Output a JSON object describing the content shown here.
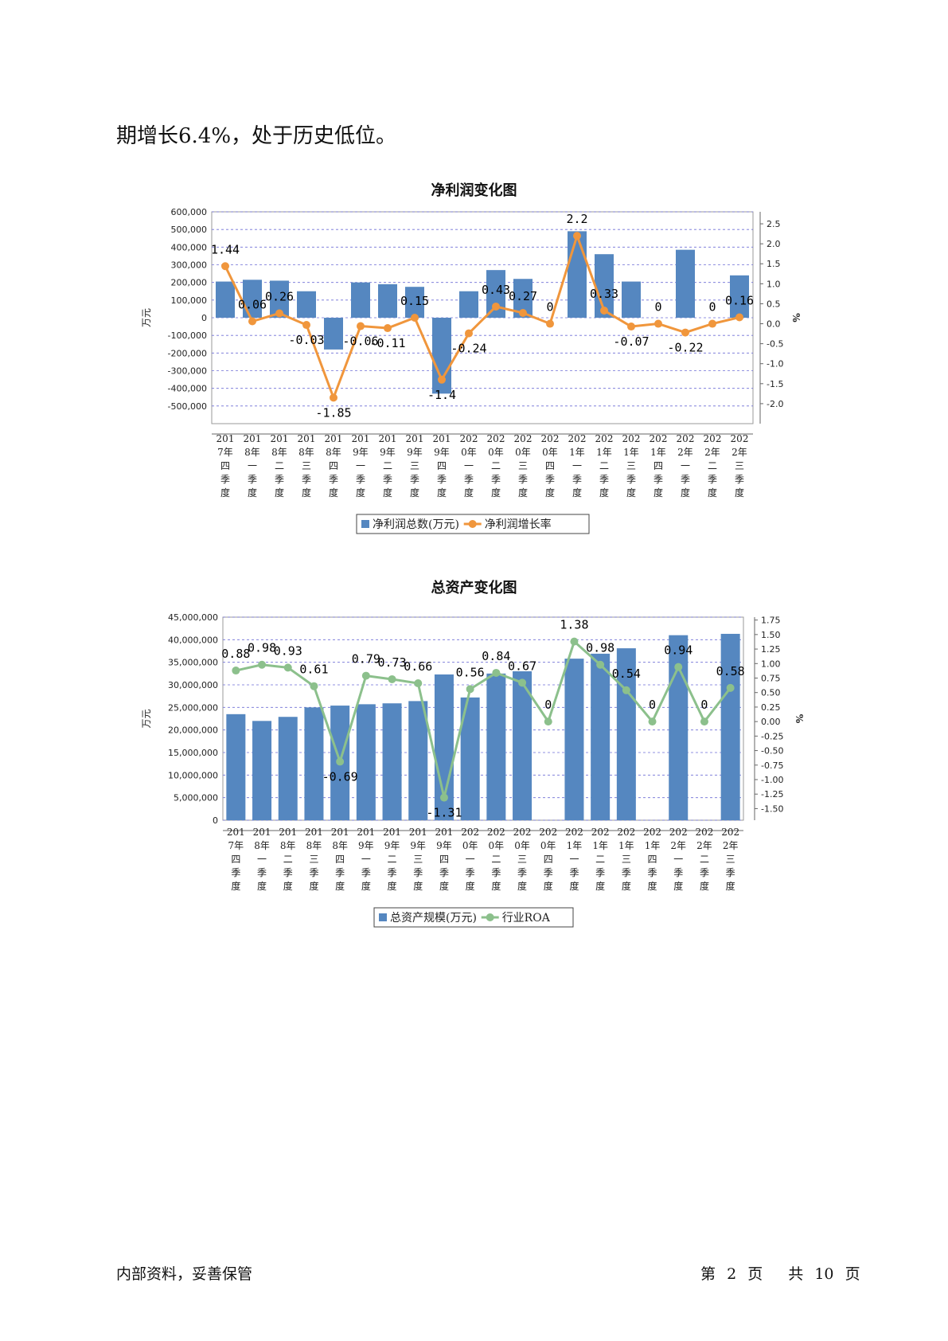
{
  "intro_text": "期增长6.4%，处于历史低位。",
  "footer": {
    "left": "内部资料，妥善保管",
    "page_prefix": "第",
    "page_num": "2",
    "page_word": "页",
    "total_prefix": "共",
    "total_num": "10",
    "total_word": "页"
  },
  "chart_data": [
    {
      "type": "bar+line",
      "title": "净利润变化图",
      "categories": [
        "2017年四季度",
        "2018年一季度",
        "2018年二季度",
        "2018年三季度",
        "2018年四季度",
        "2019年一季度",
        "2019年二季度",
        "2019年三季度",
        "2019年四季度",
        "2020年一季度",
        "2020年二季度",
        "2020年三季度",
        "2020年四季度",
        "2021年一季度",
        "2021年二季度",
        "2021年三季度",
        "2021年四季度",
        "2022年一季度",
        "2022年二季度",
        "2022年三季度"
      ],
      "series": [
        {
          "name": "净利润总数(万元)",
          "type": "bar",
          "axis": "left",
          "color": "#5587c0",
          "values": [
            205000,
            215000,
            210000,
            150000,
            -180000,
            200000,
            190000,
            175000,
            -430000,
            150000,
            270000,
            220000,
            null,
            490000,
            360000,
            205000,
            null,
            385000,
            null,
            240000
          ]
        },
        {
          "name": "净利润增长率",
          "type": "line",
          "axis": "right",
          "color": "#f0963c",
          "values": [
            1.44,
            0.06,
            0.26,
            -0.03,
            -1.85,
            -0.06,
            -0.11,
            0.15,
            -1.4,
            -0.24,
            0.43,
            0.27,
            0,
            2.2,
            0.33,
            -0.07,
            0,
            -0.22,
            0,
            0.16
          ],
          "labels": [
            "1.44",
            "0.06",
            "0.26",
            "-0.03",
            "-1.85",
            "-0.06",
            "-0.11",
            "0.15",
            "-1.4",
            "-0.24",
            "0.43",
            "0.27",
            "0",
            "2.2",
            "0.33",
            "-0.07",
            "0",
            "-0.22",
            "0",
            "0.16"
          ]
        }
      ],
      "left_axis": {
        "label": "万元",
        "min": -600000,
        "max": 600000,
        "ticks": [
          600000,
          500000,
          400000,
          300000,
          200000,
          100000,
          0,
          -100000,
          -200000,
          -300000,
          -400000,
          -500000
        ],
        "tick_labels": [
          "600,000",
          "500,000",
          "400,000",
          "300,000",
          "200,000",
          "100,000",
          "0",
          "-100,000",
          "-200,000",
          "-300,000",
          "-400,000",
          "-500,000"
        ]
      },
      "right_axis": {
        "label": "%",
        "min": -2.5,
        "max": 2.8,
        "ticks": [
          2.5,
          2.0,
          1.5,
          1.0,
          0.5,
          0.0,
          -0.5,
          -1.0,
          -1.5,
          -2.0
        ],
        "tick_labels": [
          "2.5",
          "2.0",
          "1.5",
          "1.0",
          "0.5",
          "0.0",
          "-0.5",
          "-1.0",
          "-1.5",
          "-2.0"
        ]
      },
      "grid": true,
      "legend": "bottom"
    },
    {
      "type": "bar+line",
      "title": "总资产变化图",
      "categories": [
        "2017年四季度",
        "2018年一季度",
        "2018年二季度",
        "2018年三季度",
        "2018年四季度",
        "2019年一季度",
        "2019年二季度",
        "2019年三季度",
        "2019年四季度",
        "2020年一季度",
        "2020年二季度",
        "2020年三季度",
        "2020年四季度",
        "2021年一季度",
        "2021年二季度",
        "2021年三季度",
        "2021年四季度",
        "2022年一季度",
        "2022年二季度",
        "2022年三季度"
      ],
      "series": [
        {
          "name": "总资产规模(万元)",
          "type": "bar",
          "axis": "left",
          "color": "#5587c0",
          "values": [
            23500000,
            22000000,
            22900000,
            25000000,
            25400000,
            25700000,
            25900000,
            26400000,
            32300000,
            27200000,
            32500000,
            33000000,
            null,
            35800000,
            36900000,
            38100000,
            null,
            41000000,
            null,
            41300000
          ]
        },
        {
          "name": "行业ROA",
          "type": "line",
          "axis": "right",
          "color": "#8cc08c",
          "values": [
            0.88,
            0.98,
            0.93,
            0.61,
            -0.69,
            0.79,
            0.73,
            0.66,
            -1.31,
            0.56,
            0.84,
            0.67,
            0,
            1.38,
            0.98,
            0.54,
            0,
            0.94,
            0,
            0.58
          ],
          "labels": [
            "0.88",
            "0.98",
            "0.93",
            "0.61",
            "-0.69",
            "0.79",
            "0.73",
            "0.66",
            "-1.31",
            "0.56",
            "0.84",
            "0.67",
            "0",
            "1.38",
            "0.98",
            "0.54",
            "0",
            "0.94",
            "0",
            "0.58"
          ]
        }
      ],
      "left_axis": {
        "label": "万元",
        "min": 0,
        "max": 45000000,
        "ticks": [
          45000000,
          40000000,
          35000000,
          30000000,
          25000000,
          20000000,
          15000000,
          10000000,
          5000000,
          0
        ],
        "tick_labels": [
          "45,000,000",
          "40,000,000",
          "35,000,000",
          "30,000,000",
          "25,000,000",
          "20,000,000",
          "15,000,000",
          "10,000,000",
          "5,000,000",
          "0"
        ]
      },
      "right_axis": {
        "label": "%",
        "min": -1.7,
        "max": 1.8,
        "ticks": [
          1.75,
          1.5,
          1.25,
          1.0,
          0.75,
          0.5,
          0.25,
          0.0,
          -0.25,
          -0.5,
          -0.75,
          -1.0,
          -1.25,
          -1.5
        ],
        "tick_labels": [
          "1.75",
          "1.50",
          "1.25",
          "1.00",
          "0.75",
          "0.50",
          "0.25",
          "0.00",
          "-0.25",
          "-0.50",
          "-0.75",
          "-1.00",
          "-1.25",
          "-1.50"
        ]
      },
      "grid": true,
      "legend": "bottom"
    }
  ]
}
